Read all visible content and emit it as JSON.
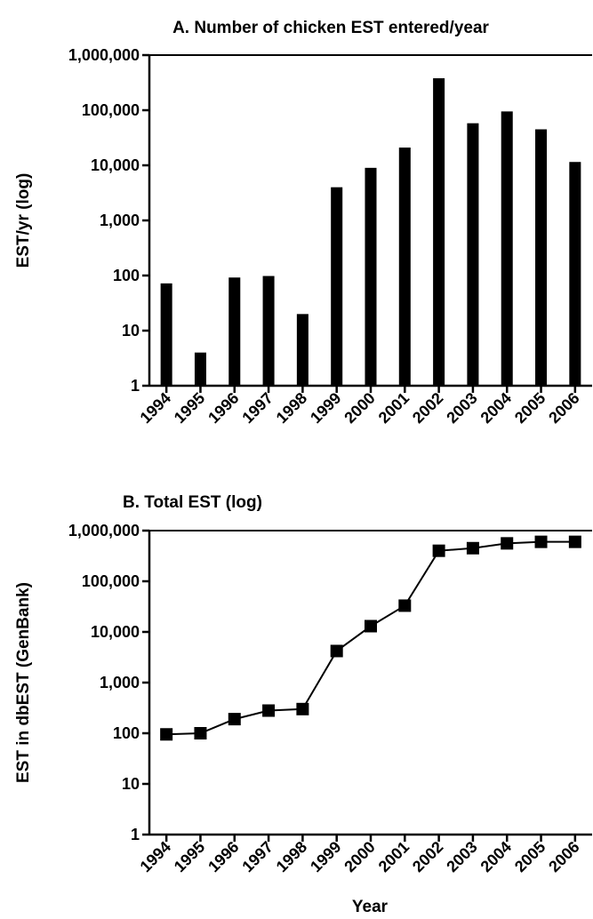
{
  "chart_data": [
    {
      "type": "bar",
      "title": "A. Number of chicken EST entered/year",
      "xlabel": "",
      "ylabel": "EST/yr (log)",
      "yscale": "log",
      "ylim": [
        1,
        1000000
      ],
      "yticks": [
        "1",
        "10",
        "100",
        "1,000",
        "10,000",
        "100,000",
        "1,000,000"
      ],
      "categories": [
        "1994",
        "1995",
        "1996",
        "1997",
        "1998",
        "1999",
        "2000",
        "2001",
        "2002",
        "2003",
        "2004",
        "2005",
        "2006"
      ],
      "values": [
        72,
        4,
        92,
        98,
        20,
        4000,
        9000,
        21000,
        380000,
        58000,
        95000,
        45000,
        11500
      ],
      "bar_color": "#000000"
    },
    {
      "type": "line",
      "title": "B. Total EST (log)",
      "xlabel": "Year",
      "ylabel": "EST in dbEST (GenBank)",
      "yscale": "log",
      "ylim": [
        1,
        1000000
      ],
      "yticks": [
        "1",
        "10",
        "100",
        "1,000",
        "10,000",
        "100,000",
        "1,000,000"
      ],
      "categories": [
        "1994",
        "1995",
        "1996",
        "1997",
        "1998",
        "1999",
        "2000",
        "2001",
        "2002",
        "2003",
        "2004",
        "2005",
        "2006"
      ],
      "values": [
        95,
        100,
        190,
        280,
        300,
        4200,
        13000,
        33000,
        400000,
        450000,
        560000,
        600000,
        600000
      ],
      "marker": "square",
      "line_color": "#000000"
    }
  ]
}
